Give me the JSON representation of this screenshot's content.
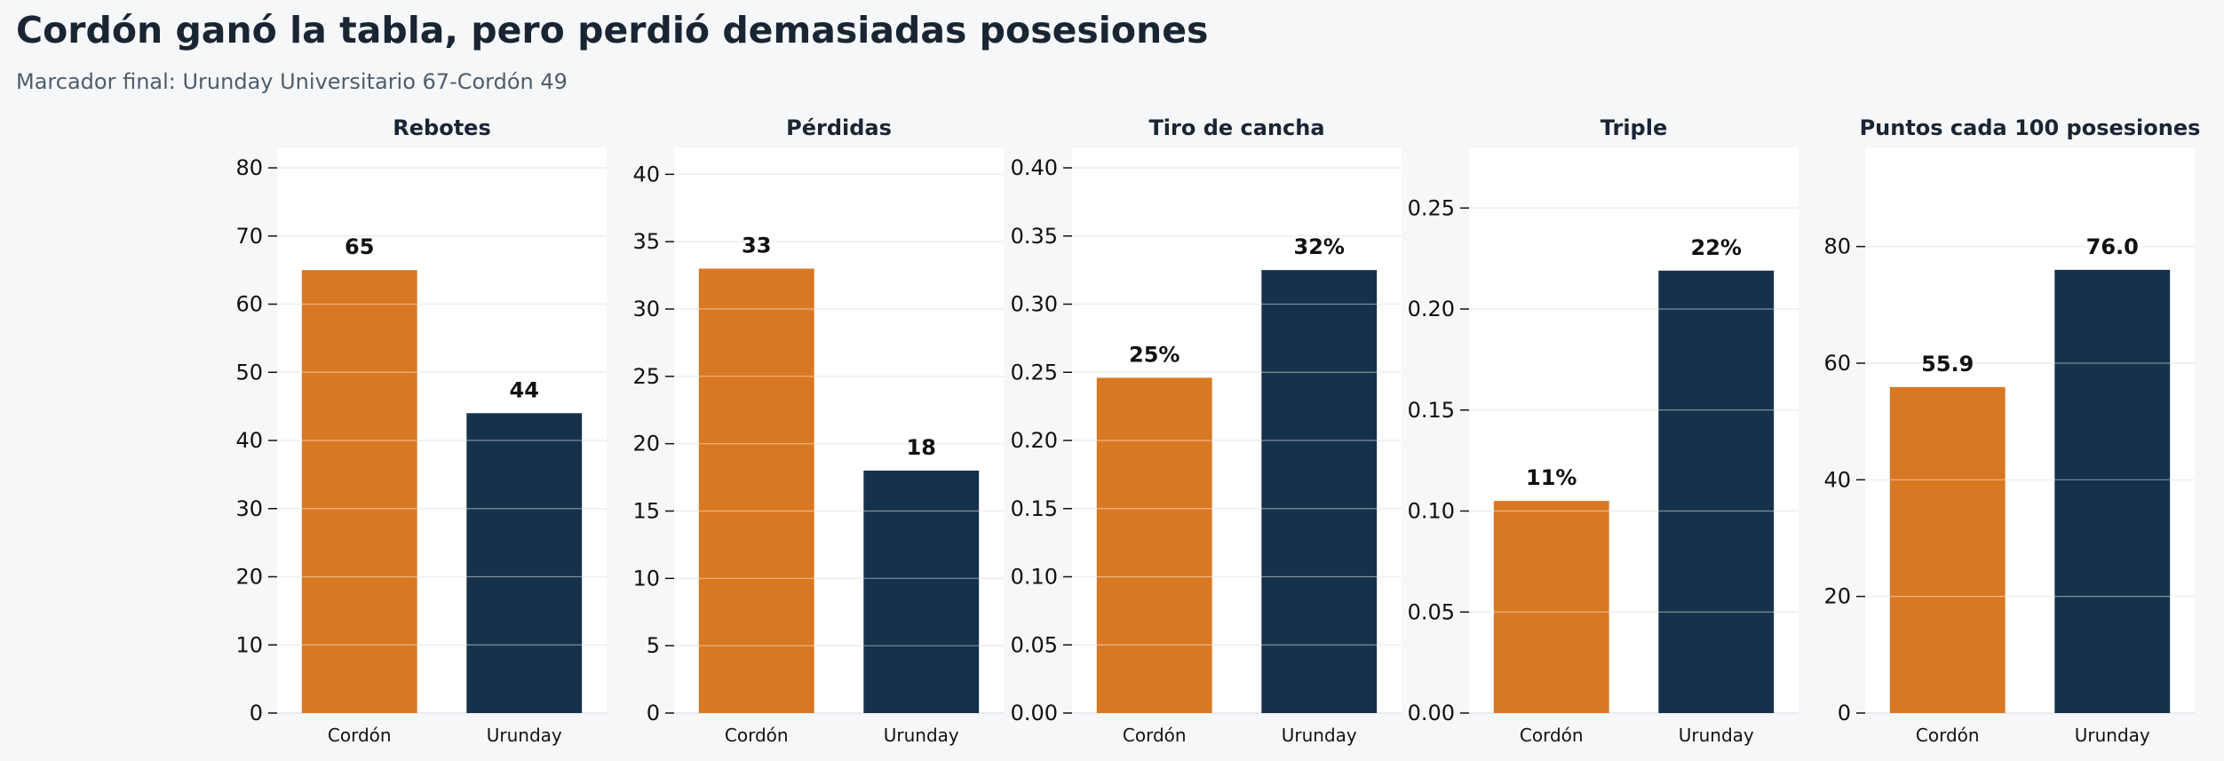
{
  "header": {
    "title": "Cordón ganó la tabla, pero perdió demasiadas posesiones",
    "subtitle": "Marcador final: Urunday Universitario 67-Cordón 49"
  },
  "colors": {
    "cordon": "#d97822",
    "urunday": "#16314b",
    "plot_bg": "#ffffff",
    "page_bg": "#f6f7f9",
    "grid": "#e3e6ea"
  },
  "chart_data": [
    {
      "type": "bar",
      "title": "Rebotes",
      "categories": [
        "Cordón",
        "Urunday"
      ],
      "values": [
        65,
        44
      ],
      "value_labels": [
        "65",
        "44"
      ],
      "ylim": [
        0,
        83
      ],
      "yticks": [
        0,
        10,
        20,
        30,
        40,
        50,
        60,
        70,
        80
      ],
      "ytick_labels": [
        "0",
        "10",
        "20",
        "30",
        "40",
        "50",
        "60",
        "70",
        "80"
      ],
      "grid": true
    },
    {
      "type": "bar",
      "title": "Pérdidas",
      "categories": [
        "Cordón",
        "Urunday"
      ],
      "values": [
        33,
        18
      ],
      "value_labels": [
        "33",
        "18"
      ],
      "ylim": [
        0,
        42
      ],
      "yticks": [
        0,
        5,
        10,
        15,
        20,
        25,
        30,
        35,
        40
      ],
      "ytick_labels": [
        "0",
        "5",
        "10",
        "15",
        "20",
        "25",
        "30",
        "35",
        "40"
      ],
      "grid": true
    },
    {
      "type": "bar",
      "title": "Tiro de cancha",
      "categories": [
        "Cordón",
        "Urunday"
      ],
      "values": [
        0.246,
        0.325
      ],
      "value_labels": [
        "25%",
        "32%"
      ],
      "ylim": [
        0,
        0.415
      ],
      "yticks": [
        0,
        0.05,
        0.1,
        0.15,
        0.2,
        0.25,
        0.3,
        0.35,
        0.4
      ],
      "ytick_labels": [
        "0.00",
        "0.05",
        "0.10",
        "0.15",
        "0.20",
        "0.25",
        "0.30",
        "0.35",
        "0.40"
      ],
      "grid": true
    },
    {
      "type": "bar",
      "title": "Triple",
      "categories": [
        "Cordón",
        "Urunday"
      ],
      "values": [
        0.105,
        0.219
      ],
      "value_labels": [
        "11%",
        "22%"
      ],
      "ylim": [
        0,
        0.28
      ],
      "yticks": [
        0,
        0.05,
        0.1,
        0.15,
        0.2,
        0.25
      ],
      "ytick_labels": [
        "0.00",
        "0.05",
        "0.10",
        "0.15",
        "0.20",
        "0.25"
      ],
      "grid": true
    },
    {
      "type": "bar",
      "title": "Puntos cada 100 posesiones",
      "categories": [
        "Cordón",
        "Urunday"
      ],
      "values": [
        55.9,
        76.0
      ],
      "value_labels": [
        "55.9",
        "76.0"
      ],
      "ylim": [
        0,
        97
      ],
      "yticks": [
        0,
        20,
        40,
        60,
        80
      ],
      "ytick_labels": [
        "0",
        "20",
        "40",
        "60",
        "80"
      ],
      "grid": true
    }
  ]
}
